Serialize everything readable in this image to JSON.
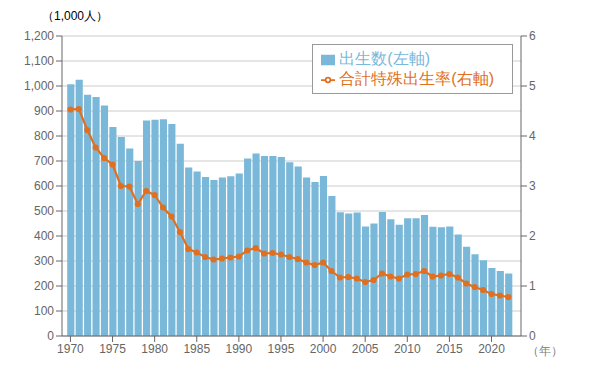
{
  "chart_data": {
    "type": "bar",
    "x": [
      1970,
      1971,
      1972,
      1973,
      1974,
      1975,
      1976,
      1977,
      1978,
      1979,
      1980,
      1981,
      1982,
      1983,
      1984,
      1985,
      1986,
      1987,
      1988,
      1989,
      1990,
      1991,
      1992,
      1993,
      1994,
      1995,
      1996,
      1997,
      1998,
      1999,
      2000,
      2001,
      2002,
      2003,
      2004,
      2005,
      2006,
      2007,
      2008,
      2009,
      2010,
      2011,
      2012,
      2013,
      2014,
      2015,
      2016,
      2017,
      2018,
      2019,
      2020,
      2021,
      2022
    ],
    "series": [
      {
        "name": "出生数(左軸)",
        "type": "bar",
        "color": "#7ab8d9",
        "values": [
          1007,
          1025,
          965,
          956,
          922,
          836,
          796,
          750,
          700,
          862,
          865,
          867,
          848,
          769,
          674,
          658,
          636,
          624,
          634,
          639,
          650,
          710,
          730,
          720,
          720,
          716,
          695,
          678,
          634,
          616,
          640,
          560,
          495,
          490,
          494,
          438,
          450,
          496,
          467,
          445,
          471,
          471,
          484,
          437,
          435,
          438,
          406,
          357,
          327,
          303,
          272,
          260,
          250
        ]
      },
      {
        "name": "合計特殊出生率(右軸)",
        "type": "line",
        "color": "#e07020",
        "marker": "circle",
        "axis": "y2",
        "values": [
          4.53,
          4.54,
          4.12,
          3.77,
          3.56,
          3.43,
          3.0,
          2.99,
          2.64,
          2.9,
          2.82,
          2.57,
          2.39,
          2.08,
          1.74,
          1.67,
          1.58,
          1.53,
          1.55,
          1.57,
          1.59,
          1.71,
          1.76,
          1.65,
          1.66,
          1.63,
          1.58,
          1.54,
          1.47,
          1.42,
          1.47,
          1.3,
          1.17,
          1.18,
          1.15,
          1.08,
          1.12,
          1.25,
          1.19,
          1.15,
          1.23,
          1.24,
          1.3,
          1.19,
          1.21,
          1.24,
          1.17,
          1.05,
          0.98,
          0.92,
          0.84,
          0.81,
          0.78
        ]
      }
    ],
    "xlabel": "（年）",
    "ylabel": "（1,000人）",
    "xlim": [
      1969.0,
      2023.5
    ],
    "xticks": [
      1970,
      1975,
      1980,
      1985,
      1990,
      1995,
      2000,
      2005,
      2010,
      2015,
      2020
    ],
    "ylim": [
      0,
      1200
    ],
    "yticks": [
      0,
      100,
      200,
      300,
      400,
      500,
      600,
      700,
      800,
      900,
      {
        "value": 1000,
        "label": "1,000"
      },
      {
        "value": 1100,
        "label": "1,100"
      },
      {
        "value": 1200,
        "label": "1,200"
      }
    ],
    "y2lim": [
      0,
      6
    ],
    "y2ticks": [
      0,
      1,
      2,
      3,
      4,
      5,
      6
    ],
    "grid": true,
    "legend": "upper right"
  }
}
